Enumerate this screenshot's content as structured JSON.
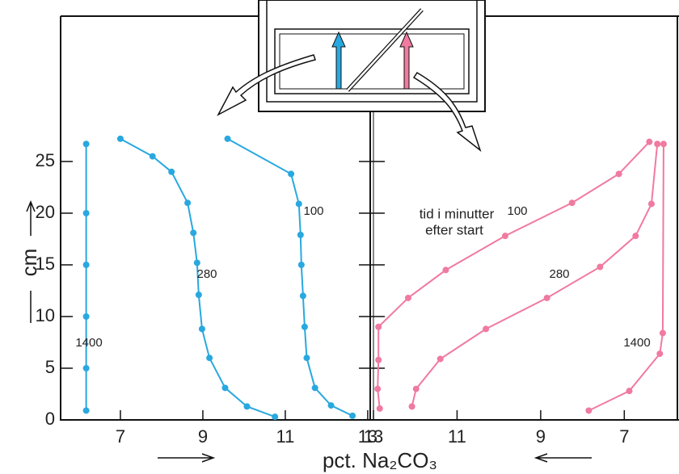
{
  "chart_data": [
    {
      "type": "line",
      "xlabel": "pct. Na₂CO₃",
      "ylabel": "cm",
      "xlim": [
        5.55,
        13.06
      ],
      "xticks": [
        7,
        9,
        11,
        13
      ],
      "ylim": [
        0,
        27
      ],
      "yticks": [
        0,
        5,
        10,
        15,
        20,
        25
      ],
      "series": [
        {
          "name": "1400",
          "color": "#29a8e0",
          "x": [
            6.17,
            6.17,
            6.17,
            6.17,
            6.17,
            6.17
          ],
          "y": [
            26.7,
            20.0,
            15.0,
            10.0,
            5.0,
            0.9
          ]
        },
        {
          "name": "280",
          "color": "#29a8e0",
          "x": [
            7.0,
            7.78,
            8.24,
            8.63,
            8.77,
            8.86,
            8.9,
            8.98,
            9.16,
            9.54,
            10.07,
            10.75
          ],
          "y": [
            27.2,
            25.5,
            24.0,
            21.0,
            18.1,
            15.2,
            12.1,
            8.8,
            6.0,
            3.1,
            1.3,
            0.3
          ]
        },
        {
          "name": "100",
          "color": "#29a8e0",
          "x": [
            9.6,
            11.14,
            11.33,
            11.37,
            11.39,
            11.43,
            11.47,
            11.52,
            11.72,
            12.11,
            12.63
          ],
          "y": [
            27.2,
            23.8,
            20.9,
            17.9,
            15.0,
            12.0,
            9.0,
            6.0,
            3.1,
            1.4,
            0.4
          ]
        }
      ]
    },
    {
      "type": "line",
      "annotation": [
        "tid i minutter",
        "efter start"
      ],
      "xlim": [
        13,
        5.73
      ],
      "xticks": [
        13,
        11,
        9,
        7
      ],
      "ylim": [
        0,
        27
      ],
      "series": [
        {
          "name": "100",
          "color": "#f07aa0",
          "x": [
            12.85,
            12.9,
            12.88,
            12.88,
            12.17,
            11.27,
            9.85,
            8.25,
            7.13,
            6.4
          ],
          "y": [
            1.1,
            3.0,
            5.8,
            9.0,
            11.8,
            14.5,
            17.8,
            21.0,
            23.8,
            26.9
          ]
        },
        {
          "name": "280",
          "color": "#f07aa0",
          "x": [
            12.08,
            11.98,
            11.4,
            10.31,
            8.85,
            7.58,
            6.73,
            6.35,
            6.21
          ],
          "y": [
            1.3,
            3.0,
            5.9,
            8.8,
            11.8,
            14.8,
            17.8,
            20.9,
            26.7
          ]
        },
        {
          "name": "1400",
          "color": "#f07aa0",
          "x": [
            7.85,
            6.88,
            6.15,
            6.08,
            6.06
          ],
          "y": [
            0.9,
            2.8,
            6.4,
            8.4,
            26.7
          ]
        }
      ]
    }
  ]
}
